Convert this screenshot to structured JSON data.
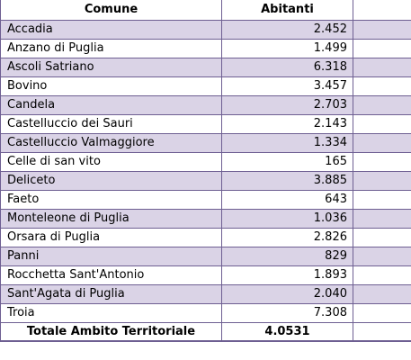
{
  "header": {
    "col_comune": "Comune",
    "col_abitanti": "Abitanti",
    "col_extra": ""
  },
  "rows": [
    {
      "comune": "Accadia",
      "abitanti": "2.452"
    },
    {
      "comune": "Anzano di Puglia",
      "abitanti": "1.499"
    },
    {
      "comune": "Ascoli Satriano",
      "abitanti": "6.318"
    },
    {
      "comune": "Bovino",
      "abitanti": "3.457"
    },
    {
      "comune": "Candela",
      "abitanti": "2.703"
    },
    {
      "comune": "Castelluccio dei Sauri",
      "abitanti": "2.143"
    },
    {
      "comune": "Castelluccio Valmaggiore",
      "abitanti": "1.334"
    },
    {
      "comune": "Celle di san vito",
      "abitanti": "165"
    },
    {
      "comune": "Deliceto",
      "abitanti": "3.885"
    },
    {
      "comune": "Faeto",
      "abitanti": "643"
    },
    {
      "comune": "Monteleone di Puglia",
      "abitanti": "1.036"
    },
    {
      "comune": "Orsara di Puglia",
      "abitanti": "2.826"
    },
    {
      "comune": "Panni",
      "abitanti": "829"
    },
    {
      "comune": "Rocchetta Sant'Antonio",
      "abitanti": "1.893"
    },
    {
      "comune": "Sant'Agata di Puglia",
      "abitanti": "2.040"
    },
    {
      "comune": "Troia",
      "abitanti": "7.308"
    }
  ],
  "total": {
    "label": "Totale Ambito Territoriale",
    "value": "4.0531"
  },
  "colors": {
    "border": "#6e5f92",
    "stripe": "#dad3e6"
  }
}
